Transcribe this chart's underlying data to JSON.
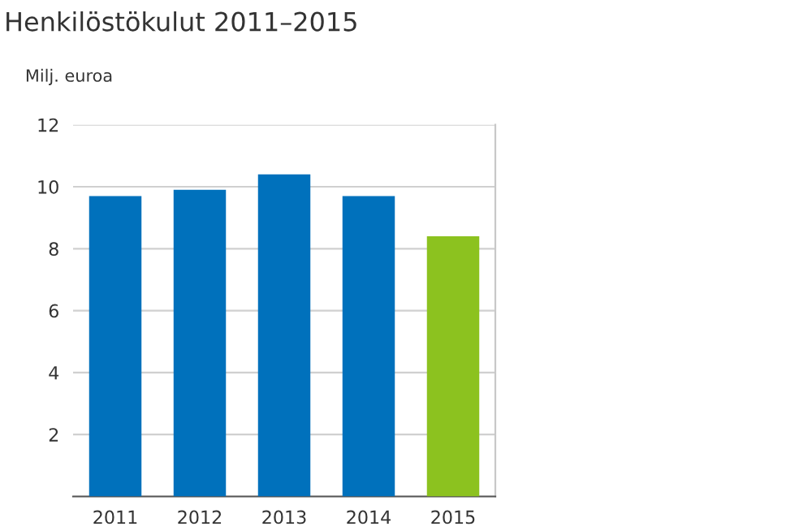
{
  "chart_data": {
    "type": "bar",
    "title": "Henkilöstökulut 2011–2015",
    "ylabel": "Milj. euroa",
    "categories": [
      "2011",
      "2012",
      "2013",
      "2014",
      "2015"
    ],
    "values": [
      9.7,
      9.9,
      10.4,
      9.7,
      8.4
    ],
    "colors": [
      "#0071bc",
      "#0071bc",
      "#0071bc",
      "#0071bc",
      "#8cc21f"
    ],
    "ylim": [
      0,
      12
    ],
    "yticks": [
      {
        "value": 0,
        "label": null
      },
      2,
      4,
      6,
      8,
      10,
      12
    ],
    "grid": "y"
  }
}
